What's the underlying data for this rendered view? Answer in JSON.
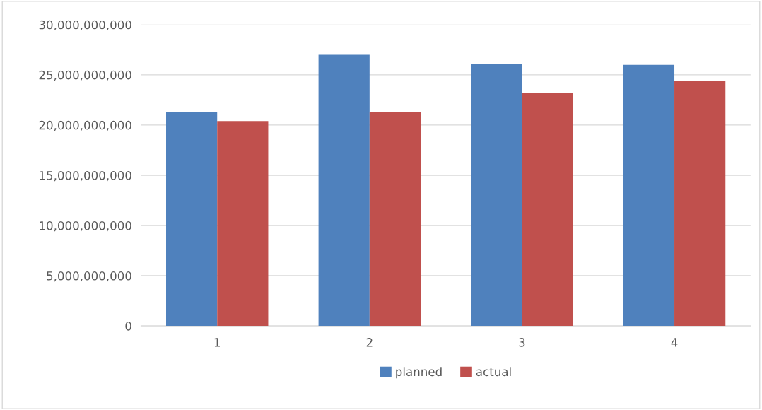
{
  "chart_data": {
    "type": "bar",
    "categories": [
      "1",
      "2",
      "3",
      "4"
    ],
    "series": [
      {
        "name": "planned",
        "color": "#4f81bd",
        "values": [
          21300000000,
          27000000000,
          26100000000,
          26000000000
        ]
      },
      {
        "name": "actual",
        "color": "#c0504d",
        "values": [
          20400000000,
          21300000000,
          23200000000,
          24400000000
        ]
      }
    ],
    "ylim": [
      0,
      30000000000
    ],
    "yticks": [
      {
        "value": 0,
        "label": "0"
      },
      {
        "value": 5000000000,
        "label": "5,000,000,000"
      },
      {
        "value": 10000000000,
        "label": "10,000,000,000"
      },
      {
        "value": 15000000000,
        "label": "15,000,000,000"
      },
      {
        "value": 20000000000,
        "label": "20,000,000,000"
      },
      {
        "value": 25000000000,
        "label": "25,000,000,000"
      },
      {
        "value": 30000000000,
        "label": "30,000,000,000"
      }
    ],
    "grid": "y",
    "legend": "bottom"
  }
}
